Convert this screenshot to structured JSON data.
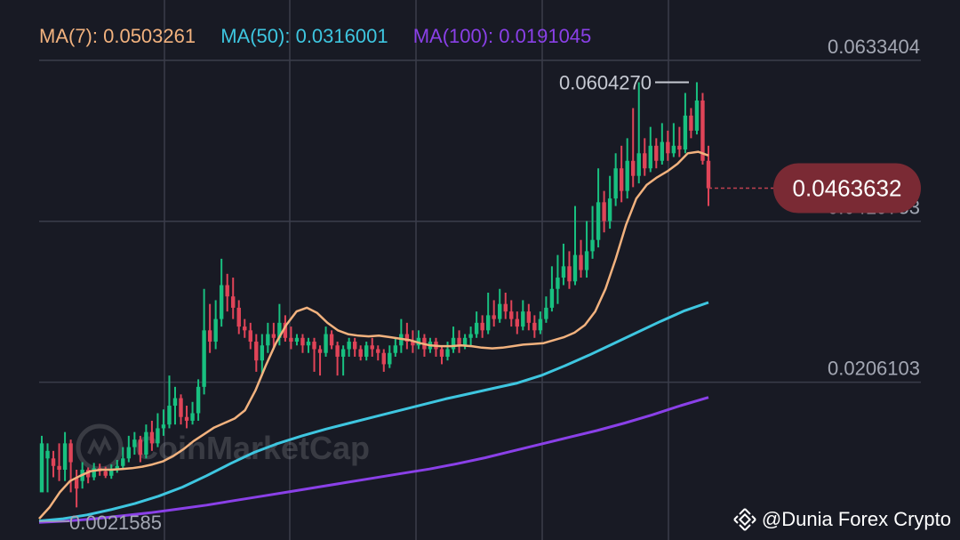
{
  "legend": {
    "ma7": "MA(7): 0.0503261",
    "ma50": "MA(50): 0.0316001",
    "ma100": "MA(100): 0.0191045"
  },
  "colors": {
    "background": "#181a24",
    "grid": "#3a3d4a",
    "up": "#18c080",
    "down": "#e04458",
    "ma7": "#f2b27e",
    "ma50": "#3ec6e0",
    "ma100": "#8a40e8",
    "price_bubble": "#7a2a34"
  },
  "watermark": "CoinMarketCap",
  "credit": "@Dunia Forex Crypto",
  "chart_data": {
    "type": "candlestick",
    "y_ticks": [
      "0.0633404",
      "0.0419753",
      "0.0206103",
      "0.0021585"
    ],
    "ylim": [
      0.0005,
      0.0678
    ],
    "high_label": "0.0604270",
    "current_price_label": "0.0463632",
    "current_price": 0.0463632,
    "grid": true,
    "candles": [
      [
        0.006,
        0.0125,
        0.0065,
        0.0135
      ],
      [
        0.0105,
        0.0115,
        0.006,
        0.0125
      ],
      [
        0.0105,
        0.0095,
        0.008,
        0.0115
      ],
      [
        0.0095,
        0.009,
        0.0075,
        0.0125
      ],
      [
        0.009,
        0.0125,
        0.0075,
        0.014
      ],
      [
        0.0125,
        0.01,
        0.006,
        0.013
      ],
      [
        0.008,
        0.0065,
        0.004,
        0.009
      ],
      [
        0.0075,
        0.009,
        0.0065,
        0.01
      ],
      [
        0.009,
        0.008,
        0.0072,
        0.0093
      ],
      [
        0.008,
        0.0092,
        0.0076,
        0.0099
      ],
      [
        0.0092,
        0.0088,
        0.0082,
        0.0098
      ],
      [
        0.0088,
        0.0082,
        0.0079,
        0.0094
      ],
      [
        0.0082,
        0.009,
        0.0078,
        0.0097
      ],
      [
        0.009,
        0.0095,
        0.0086,
        0.0103
      ],
      [
        0.0095,
        0.0105,
        0.009,
        0.012
      ],
      [
        0.0105,
        0.012,
        0.01,
        0.0135
      ],
      [
        0.012,
        0.013,
        0.011,
        0.014
      ],
      [
        0.013,
        0.011,
        0.01,
        0.0135
      ],
      [
        0.011,
        0.014,
        0.0105,
        0.015
      ],
      [
        0.014,
        0.0125,
        0.0115,
        0.0155
      ],
      [
        0.0125,
        0.0145,
        0.012,
        0.0165
      ],
      [
        0.0145,
        0.015,
        0.0135,
        0.017
      ],
      [
        0.015,
        0.0175,
        0.0145,
        0.0215
      ],
      [
        0.0175,
        0.0185,
        0.015,
        0.02
      ],
      [
        0.0185,
        0.016,
        0.015,
        0.019
      ],
      [
        0.016,
        0.0155,
        0.0145,
        0.0175
      ],
      [
        0.0155,
        0.0165,
        0.015,
        0.018
      ],
      [
        0.0165,
        0.02,
        0.0155,
        0.021
      ],
      [
        0.02,
        0.0275,
        0.019,
        0.033
      ],
      [
        0.0275,
        0.026,
        0.0245,
        0.031
      ],
      [
        0.026,
        0.029,
        0.025,
        0.0315
      ],
      [
        0.029,
        0.0335,
        0.028,
        0.037
      ],
      [
        0.0335,
        0.032,
        0.03,
        0.035
      ],
      [
        0.032,
        0.0305,
        0.029,
        0.0345
      ],
      [
        0.0305,
        0.028,
        0.027,
        0.0315
      ],
      [
        0.028,
        0.0275,
        0.0265,
        0.029
      ],
      [
        0.0275,
        0.026,
        0.025,
        0.0285
      ],
      [
        0.026,
        0.0235,
        0.022,
        0.027
      ],
      [
        0.0235,
        0.0255,
        0.0215,
        0.027
      ],
      [
        0.0255,
        0.027,
        0.0245,
        0.0285
      ],
      [
        0.027,
        0.0265,
        0.025,
        0.0285
      ],
      [
        0.0265,
        0.0285,
        0.0255,
        0.031
      ],
      [
        0.0285,
        0.0265,
        0.026,
        0.0295
      ],
      [
        0.0265,
        0.026,
        0.025,
        0.028
      ],
      [
        0.026,
        0.0265,
        0.0255,
        0.027
      ],
      [
        0.0265,
        0.0255,
        0.0245,
        0.027
      ],
      [
        0.0255,
        0.026,
        0.0245,
        0.0265
      ],
      [
        0.026,
        0.025,
        0.022,
        0.0265
      ],
      [
        0.025,
        0.0245,
        0.0215,
        0.0255
      ],
      [
        0.0245,
        0.027,
        0.024,
        0.028
      ],
      [
        0.027,
        0.0255,
        0.025,
        0.0275
      ],
      [
        0.0255,
        0.024,
        0.0215,
        0.026
      ],
      [
        0.024,
        0.025,
        0.0215,
        0.0255
      ],
      [
        0.025,
        0.026,
        0.024,
        0.0265
      ],
      [
        0.026,
        0.025,
        0.024,
        0.0265
      ],
      [
        0.025,
        0.024,
        0.0235,
        0.0255
      ],
      [
        0.024,
        0.0255,
        0.0235,
        0.026
      ],
      [
        0.0255,
        0.025,
        0.024,
        0.0265
      ],
      [
        0.025,
        0.0245,
        0.0235,
        0.0255
      ],
      [
        0.0245,
        0.023,
        0.022,
        0.025
      ],
      [
        0.023,
        0.0245,
        0.0225,
        0.0255
      ],
      [
        0.0245,
        0.0255,
        0.024,
        0.0265
      ],
      [
        0.0255,
        0.027,
        0.0245,
        0.029
      ],
      [
        0.027,
        0.026,
        0.025,
        0.0285
      ],
      [
        0.026,
        0.0255,
        0.0245,
        0.0275
      ],
      [
        0.0255,
        0.0265,
        0.025,
        0.0275
      ],
      [
        0.0265,
        0.025,
        0.024,
        0.027
      ],
      [
        0.025,
        0.026,
        0.0245,
        0.0265
      ],
      [
        0.026,
        0.025,
        0.024,
        0.0265
      ],
      [
        0.025,
        0.024,
        0.023,
        0.0255
      ],
      [
        0.024,
        0.025,
        0.0235,
        0.026
      ],
      [
        0.025,
        0.0265,
        0.0245,
        0.028
      ],
      [
        0.0265,
        0.0255,
        0.0245,
        0.0275
      ],
      [
        0.0255,
        0.0265,
        0.025,
        0.027
      ],
      [
        0.0265,
        0.027,
        0.0255,
        0.028
      ],
      [
        0.027,
        0.0285,
        0.0265,
        0.03
      ],
      [
        0.0285,
        0.0275,
        0.0265,
        0.0295
      ],
      [
        0.0275,
        0.0295,
        0.027,
        0.0325
      ],
      [
        0.0295,
        0.029,
        0.028,
        0.0315
      ],
      [
        0.029,
        0.031,
        0.0285,
        0.033
      ],
      [
        0.031,
        0.03,
        0.029,
        0.0325
      ],
      [
        0.03,
        0.029,
        0.028,
        0.0315
      ],
      [
        0.029,
        0.028,
        0.027,
        0.03
      ],
      [
        0.028,
        0.03,
        0.0275,
        0.0315
      ],
      [
        0.03,
        0.0285,
        0.0275,
        0.031
      ],
      [
        0.0285,
        0.0275,
        0.0265,
        0.0295
      ],
      [
        0.0275,
        0.029,
        0.027,
        0.03
      ],
      [
        0.029,
        0.0305,
        0.0285,
        0.032
      ],
      [
        0.0305,
        0.033,
        0.03,
        0.036
      ],
      [
        0.033,
        0.0345,
        0.031,
        0.0375
      ],
      [
        0.0345,
        0.036,
        0.0335,
        0.039
      ],
      [
        0.036,
        0.034,
        0.033,
        0.038
      ],
      [
        0.034,
        0.0375,
        0.0335,
        0.044
      ],
      [
        0.0375,
        0.0355,
        0.0345,
        0.0395
      ],
      [
        0.0355,
        0.038,
        0.0345,
        0.042
      ],
      [
        0.038,
        0.0395,
        0.037,
        0.044
      ],
      [
        0.0395,
        0.0445,
        0.0385,
        0.049
      ],
      [
        0.0445,
        0.042,
        0.0405,
        0.046
      ],
      [
        0.042,
        0.045,
        0.041,
        0.048
      ],
      [
        0.045,
        0.049,
        0.044,
        0.051
      ],
      [
        0.049,
        0.046,
        0.0445,
        0.052
      ],
      [
        0.046,
        0.05,
        0.045,
        0.053
      ],
      [
        0.05,
        0.048,
        0.0465,
        0.057
      ],
      [
        0.048,
        0.051,
        0.047,
        0.060427
      ],
      [
        0.051,
        0.049,
        0.048,
        0.053
      ],
      [
        0.049,
        0.052,
        0.0485,
        0.0545
      ],
      [
        0.052,
        0.05,
        0.049,
        0.053
      ],
      [
        0.05,
        0.0525,
        0.0495,
        0.055
      ],
      [
        0.0525,
        0.051,
        0.05,
        0.054
      ],
      [
        0.051,
        0.052,
        0.0505,
        0.055
      ],
      [
        0.052,
        0.0515,
        0.0505,
        0.0545
      ],
      [
        0.0515,
        0.056,
        0.051,
        0.059
      ],
      [
        0.056,
        0.054,
        0.053,
        0.057
      ],
      [
        0.054,
        0.058,
        0.0535,
        0.060427
      ],
      [
        0.058,
        0.05,
        0.0495,
        0.059
      ],
      [
        0.05,
        0.0463632,
        0.044,
        0.052
      ]
    ],
    "ma7": [
      0.0025,
      0.004,
      0.006,
      0.0075,
      0.0082,
      0.0088,
      0.009,
      0.009,
      0.0091,
      0.0092,
      0.0094,
      0.0097,
      0.0101,
      0.0108,
      0.0117,
      0.0128,
      0.0137,
      0.0146,
      0.0152,
      0.0158,
      0.0169,
      0.0195,
      0.0228,
      0.0258,
      0.0282,
      0.03,
      0.0305,
      0.0298,
      0.0285,
      0.0275,
      0.027,
      0.0268,
      0.0267,
      0.0268,
      0.0266,
      0.0264,
      0.0262,
      0.0258,
      0.0255,
      0.0254,
      0.0254,
      0.0255,
      0.0254,
      0.0252,
      0.0251,
      0.0252,
      0.0254,
      0.0256,
      0.0257,
      0.0258,
      0.0262,
      0.0266,
      0.0272,
      0.0282,
      0.03,
      0.033,
      0.037,
      0.0415,
      0.045,
      0.0468,
      0.0478,
      0.0486,
      0.0496,
      0.051,
      0.0512,
      0.0507
    ],
    "ma50": [
      0.0022,
      0.0025,
      0.003,
      0.0037,
      0.0045,
      0.0055,
      0.0067,
      0.0082,
      0.0098,
      0.0113,
      0.0125,
      0.0135,
      0.0144,
      0.0152,
      0.016,
      0.0168,
      0.0176,
      0.0184,
      0.0191,
      0.0198,
      0.0205,
      0.0215,
      0.0228,
      0.0242,
      0.0257,
      0.0272,
      0.0287,
      0.0301,
      0.0312
    ],
    "ma100": [
      0.002,
      0.0022,
      0.0025,
      0.0029,
      0.0033,
      0.0038,
      0.0043,
      0.0049,
      0.0055,
      0.0061,
      0.0067,
      0.0073,
      0.0079,
      0.0085,
      0.0091,
      0.0098,
      0.0106,
      0.0115,
      0.0124,
      0.0133,
      0.0142,
      0.0152,
      0.0163,
      0.0175,
      0.0186
    ]
  }
}
